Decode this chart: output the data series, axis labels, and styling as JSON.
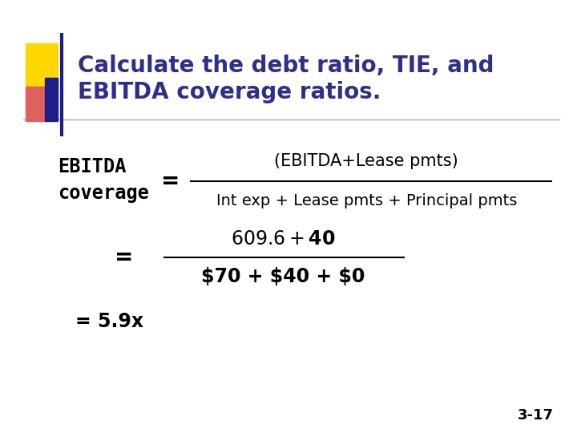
{
  "title_line1": "Calculate the debt ratio, TIE, and",
  "title_line2": "EBITDA coverage ratios.",
  "title_color": "#2E2E8B",
  "bg_color": "#FFFFFF",
  "label_line1": "EBITDA",
  "label_line2": "coverage",
  "eq_sign1": "=",
  "numerator1": "(EBITDA+Lease pmts)",
  "denominator1": "Int exp + Lease pmts + Principal pmts",
  "eq_sign2": "=",
  "numerator2": "$609.6 + $40",
  "denominator2": "$70 + $40 + $0",
  "result": "= 5.9x",
  "slide_num": "3-17",
  "text_color": "#000000",
  "line_color": "#AAAAAA",
  "accent_yellow": "#FFD700",
  "accent_red": "#E06060",
  "accent_blue": "#1E1E8B"
}
